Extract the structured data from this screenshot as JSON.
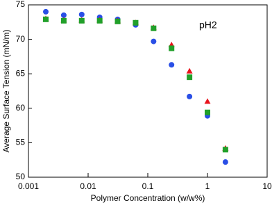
{
  "chart_data": {
    "type": "scatter",
    "xlabel": "Polymer Concentration (w/w%)",
    "ylabel": "Average Surface Tension (mN/m)",
    "annotation": "pH2",
    "xscale": "log",
    "x": [
      0.001953125,
      0.00390625,
      0.0078125,
      0.015625,
      0.03125,
      0.0625,
      0.125,
      0.25,
      0.5,
      1,
      2
    ],
    "series": [
      {
        "color": "#2a4fe6",
        "marker": "circle",
        "values": [
          74.0,
          73.5,
          73.6,
          73.2,
          72.9,
          72.1,
          69.7,
          66.3,
          61.7,
          58.9,
          52.2
        ]
      },
      {
        "color": "#e8141c",
        "marker": "triangle",
        "values": [
          73.0,
          72.8,
          72.8,
          72.8,
          72.7,
          72.4,
          71.7,
          69.2,
          65.4,
          61.0,
          54.2
        ]
      },
      {
        "color": "#21a02a",
        "marker": "square",
        "values": [
          72.9,
          72.7,
          72.7,
          72.7,
          72.6,
          72.4,
          71.6,
          68.7,
          64.5,
          59.4,
          54.0
        ]
      }
    ],
    "xlim": [
      0.001,
      10
    ],
    "xticks": [
      0.001,
      0.01,
      0.1,
      1,
      10
    ],
    "ylim": [
      50,
      75
    ],
    "yticks": [
      50,
      55,
      60,
      65,
      70,
      75
    ]
  }
}
